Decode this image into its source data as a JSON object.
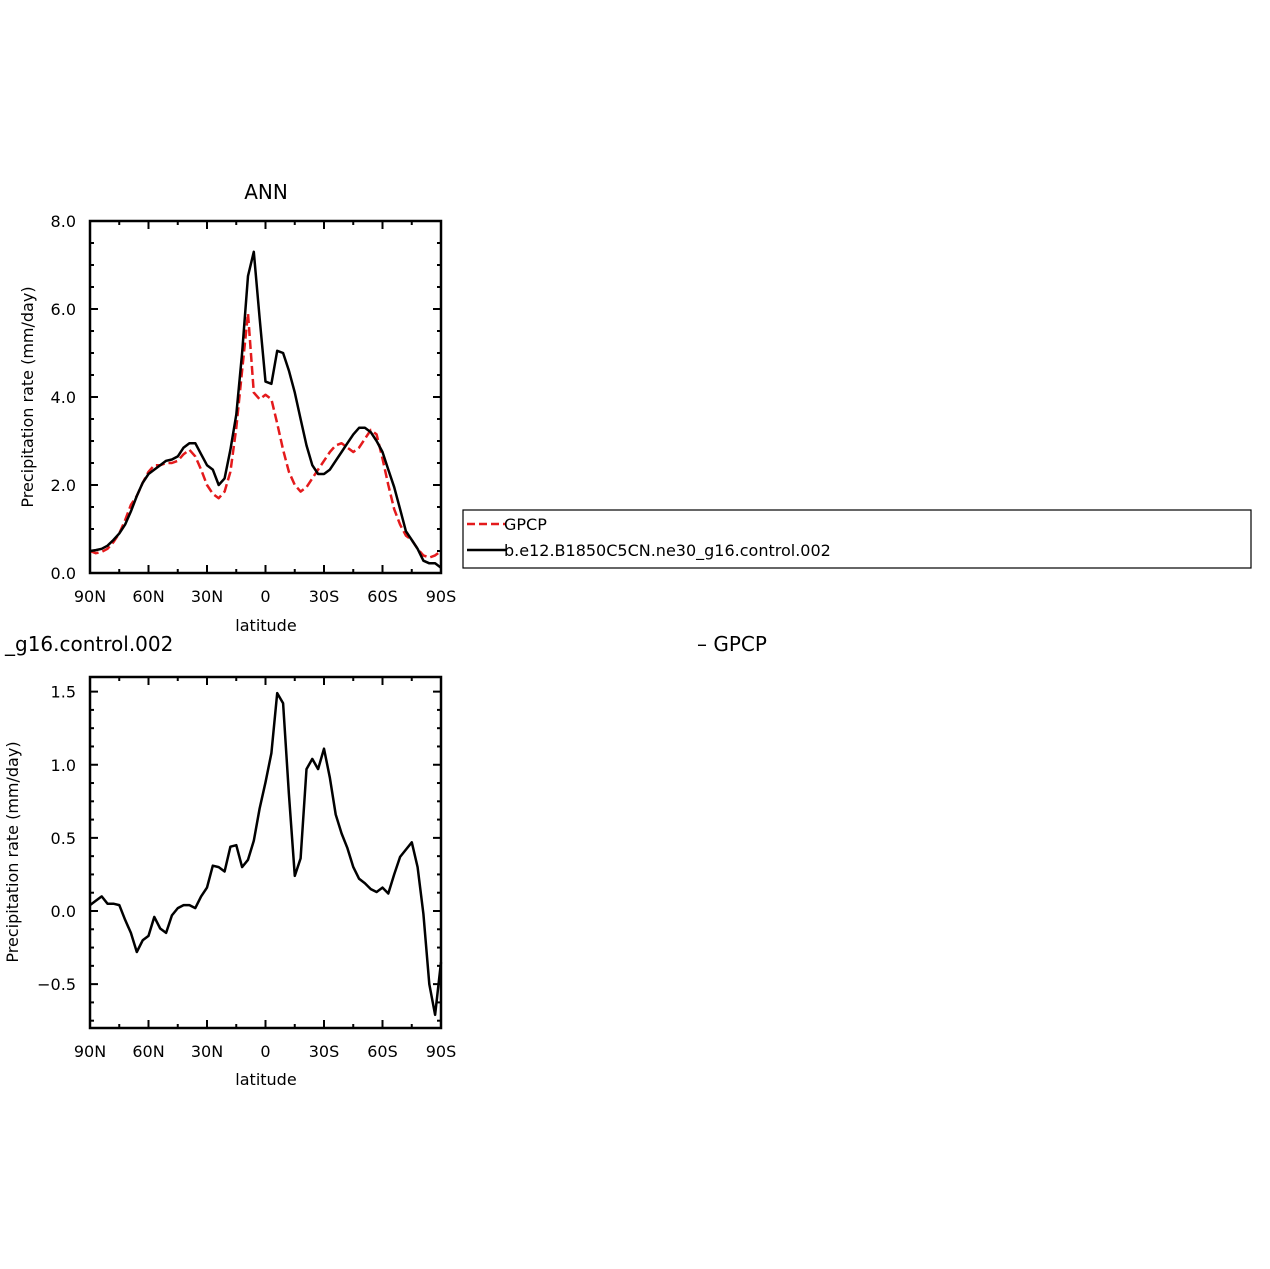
{
  "chart_data": [
    {
      "type": "line",
      "title": "ANN",
      "xlabel": "latitude",
      "ylabel": "Precipitation rate (mm/day)",
      "xlim": [
        90,
        -90
      ],
      "ylim": [
        0,
        8
      ],
      "xticks": [
        90,
        60,
        30,
        0,
        -30,
        -60,
        -90
      ],
      "xtick_labels": [
        "90N",
        "60N",
        "30N",
        "0",
        "30S",
        "60S",
        "90S"
      ],
      "yticks": [
        0,
        2,
        4,
        6,
        8
      ],
      "ytick_labels": [
        "0.0",
        "2.0",
        "4.0",
        "6.0",
        "8.0"
      ],
      "grid": false,
      "legend": "right",
      "series": [
        {
          "name": "GPCP",
          "color": "#e41a1c",
          "dash": "dashed",
          "points": [
            [
              90,
              0.5
            ],
            [
              87,
              0.45
            ],
            [
              84,
              0.48
            ],
            [
              81,
              0.55
            ],
            [
              78,
              0.7
            ],
            [
              75,
              0.9
            ],
            [
              72,
              1.2
            ],
            [
              69,
              1.55
            ],
            [
              66,
              1.75
            ],
            [
              63,
              2.05
            ],
            [
              60,
              2.3
            ],
            [
              57,
              2.45
            ],
            [
              54,
              2.45
            ],
            [
              51,
              2.5
            ],
            [
              48,
              2.5
            ],
            [
              45,
              2.55
            ],
            [
              42,
              2.7
            ],
            [
              39,
              2.8
            ],
            [
              36,
              2.65
            ],
            [
              33,
              2.35
            ],
            [
              30,
              2.0
            ],
            [
              27,
              1.8
            ],
            [
              24,
              1.7
            ],
            [
              21,
              1.85
            ],
            [
              18,
              2.3
            ],
            [
              15,
              3.3
            ],
            [
              12,
              4.6
            ],
            [
              9,
              5.9
            ],
            [
              6,
              4.1
            ],
            [
              3,
              3.95
            ],
            [
              0,
              4.05
            ],
            [
              -3,
              3.95
            ],
            [
              -6,
              3.4
            ],
            [
              -9,
              2.8
            ],
            [
              -12,
              2.3
            ],
            [
              -15,
              2.0
            ],
            [
              -18,
              1.85
            ],
            [
              -21,
              1.95
            ],
            [
              -24,
              2.15
            ],
            [
              -27,
              2.35
            ],
            [
              -30,
              2.55
            ],
            [
              -33,
              2.75
            ],
            [
              -36,
              2.9
            ],
            [
              -39,
              2.95
            ],
            [
              -42,
              2.85
            ],
            [
              -45,
              2.75
            ],
            [
              -48,
              2.85
            ],
            [
              -51,
              3.05
            ],
            [
              -54,
              3.25
            ],
            [
              -57,
              3.15
            ],
            [
              -60,
              2.6
            ],
            [
              -63,
              2.0
            ],
            [
              -66,
              1.45
            ],
            [
              -69,
              1.1
            ],
            [
              -72,
              0.85
            ],
            [
              -75,
              0.75
            ],
            [
              -78,
              0.55
            ],
            [
              -81,
              0.4
            ],
            [
              -84,
              0.35
            ],
            [
              -87,
              0.4
            ],
            [
              -90,
              0.5
            ]
          ]
        },
        {
          "name": "b.e12.B1850C5CN.ne30_g16.control.002",
          "color": "#000000",
          "dash": "solid",
          "points": [
            [
              90,
              0.5
            ],
            [
              87,
              0.52
            ],
            [
              84,
              0.55
            ],
            [
              81,
              0.62
            ],
            [
              78,
              0.75
            ],
            [
              75,
              0.9
            ],
            [
              72,
              1.1
            ],
            [
              69,
              1.4
            ],
            [
              66,
              1.75
            ],
            [
              63,
              2.05
            ],
            [
              60,
              2.25
            ],
            [
              57,
              2.35
            ],
            [
              54,
              2.45
            ],
            [
              51,
              2.55
            ],
            [
              48,
              2.58
            ],
            [
              45,
              2.65
            ],
            [
              42,
              2.85
            ],
            [
              39,
              2.95
            ],
            [
              36,
              2.95
            ],
            [
              33,
              2.7
            ],
            [
              30,
              2.45
            ],
            [
              27,
              2.35
            ],
            [
              24,
              2.0
            ],
            [
              21,
              2.15
            ],
            [
              18,
              2.8
            ],
            [
              15,
              3.6
            ],
            [
              12,
              5.0
            ],
            [
              9,
              6.75
            ],
            [
              6,
              7.3
            ],
            [
              3,
              5.8
            ],
            [
              0,
              4.35
            ],
            [
              -3,
              4.3
            ],
            [
              -6,
              5.05
            ],
            [
              -9,
              5.0
            ],
            [
              -12,
              4.6
            ],
            [
              -15,
              4.1
            ],
            [
              -18,
              3.5
            ],
            [
              -21,
              2.9
            ],
            [
              -24,
              2.45
            ],
            [
              -27,
              2.25
            ],
            [
              -30,
              2.25
            ],
            [
              -33,
              2.35
            ],
            [
              -36,
              2.55
            ],
            [
              -39,
              2.75
            ],
            [
              -42,
              2.95
            ],
            [
              -45,
              3.15
            ],
            [
              -48,
              3.3
            ],
            [
              -51,
              3.3
            ],
            [
              -54,
              3.2
            ],
            [
              -57,
              3.0
            ],
            [
              -60,
              2.75
            ],
            [
              -63,
              2.35
            ],
            [
              -66,
              1.95
            ],
            [
              -69,
              1.45
            ],
            [
              -72,
              0.95
            ],
            [
              -75,
              0.75
            ],
            [
              -78,
              0.55
            ],
            [
              -81,
              0.28
            ],
            [
              -84,
              0.22
            ],
            [
              -87,
              0.22
            ],
            [
              -90,
              0.12
            ]
          ]
        }
      ]
    },
    {
      "type": "line",
      "title": "_g16.control.002",
      "title_right": "– GPCP",
      "xlabel": "latitude",
      "ylabel": "Precipitation rate (mm/day)",
      "xlim": [
        90,
        -90
      ],
      "ylim": [
        -0.8,
        1.6
      ],
      "xticks": [
        90,
        60,
        30,
        0,
        -30,
        -60,
        -90
      ],
      "xtick_labels": [
        "90N",
        "60N",
        "30N",
        "0",
        "30S",
        "60S",
        "90S"
      ],
      "yticks": [
        -0.5,
        0,
        0.5,
        1.0,
        1.5
      ],
      "ytick_labels": [
        "−0.5",
        "0.0",
        "0.5",
        "1.0",
        "1.5"
      ],
      "grid": false,
      "series": [
        {
          "color": "#000000",
          "dash": "solid",
          "points": [
            [
              90,
              0.04
            ],
            [
              87,
              0.07
            ],
            [
              84,
              0.1
            ],
            [
              81,
              0.05
            ],
            [
              78,
              0.05
            ],
            [
              75,
              0.04
            ],
            [
              72,
              -0.06
            ],
            [
              69,
              -0.15
            ],
            [
              66,
              -0.28
            ],
            [
              63,
              -0.2
            ],
            [
              60,
              -0.17
            ],
            [
              57,
              -0.04
            ],
            [
              54,
              -0.12
            ],
            [
              51,
              -0.15
            ],
            [
              48,
              -0.03
            ],
            [
              45,
              0.02
            ],
            [
              42,
              0.04
            ],
            [
              39,
              0.04
            ],
            [
              36,
              0.02
            ],
            [
              33,
              0.1
            ],
            [
              30,
              0.16
            ],
            [
              27,
              0.31
            ],
            [
              24,
              0.3
            ],
            [
              21,
              0.27
            ],
            [
              18,
              0.44
            ],
            [
              15,
              0.45
            ],
            [
              12,
              0.3
            ],
            [
              9,
              0.35
            ],
            [
              6,
              0.48
            ],
            [
              3,
              0.7
            ],
            [
              0,
              0.88
            ],
            [
              -3,
              1.08
            ],
            [
              -6,
              1.49
            ],
            [
              -9,
              1.42
            ],
            [
              -12,
              0.8
            ],
            [
              -15,
              0.24
            ],
            [
              -18,
              0.36
            ],
            [
              -21,
              0.97
            ],
            [
              -24,
              1.04
            ],
            [
              -27,
              0.97
            ],
            [
              -30,
              1.11
            ],
            [
              -33,
              0.91
            ],
            [
              -36,
              0.66
            ],
            [
              -39,
              0.53
            ],
            [
              -42,
              0.43
            ],
            [
              -45,
              0.3
            ],
            [
              -48,
              0.22
            ],
            [
              -51,
              0.19
            ],
            [
              -54,
              0.15
            ],
            [
              -57,
              0.13
            ],
            [
              -60,
              0.16
            ],
            [
              -63,
              0.12
            ],
            [
              -66,
              0.25
            ],
            [
              -69,
              0.37
            ],
            [
              -72,
              0.42
            ],
            [
              -75,
              0.47
            ],
            [
              -78,
              0.3
            ],
            [
              -81,
              -0.02
            ],
            [
              -84,
              -0.5
            ],
            [
              -87,
              -0.71
            ],
            [
              -90,
              -0.35
            ]
          ]
        }
      ]
    }
  ]
}
